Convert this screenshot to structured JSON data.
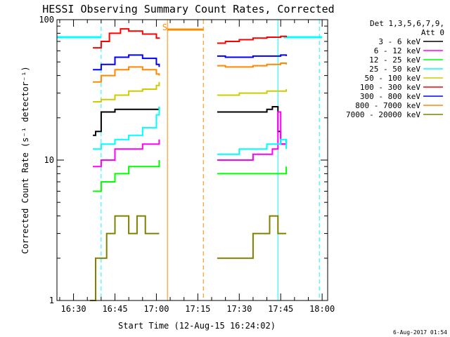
{
  "chart_data": {
    "type": "line",
    "title": "HESSI Observing Summary Count Rates, Corrected",
    "xlabel": "Start Time (12-Aug-15 16:24:02)",
    "ylabel": "Corrected Count Rate (s⁻¹ detector⁻¹)",
    "x_scale": "time",
    "y_scale": "log",
    "xlim": [
      "16:24",
      "18:02"
    ],
    "ylim": [
      1,
      100
    ],
    "x_ticks": [
      "16:30",
      "16:45",
      "17:00",
      "17:15",
      "17:30",
      "17:45",
      "18:00"
    ],
    "y_ticks": [
      "1",
      "10",
      "100"
    ],
    "grid": false,
    "legend_position": "right",
    "legend_header": [
      "Det 1,3,5,6,7,9,",
      "Att 0"
    ],
    "series": [
      {
        "name": "3 - 6 keV",
        "color": "#000000",
        "x": [
          "16:37",
          "16:38",
          "16:40",
          "16:45",
          "16:50",
          "16:55",
          "17:00",
          "17:01",
          "17:22",
          "17:25",
          "17:30",
          "17:35",
          "17:40",
          "17:42",
          "17:44",
          "17:45",
          "17:47"
        ],
        "y": [
          15,
          16,
          22,
          23,
          23,
          23,
          23,
          24,
          22,
          22,
          22,
          22,
          23,
          24,
          16,
          13,
          14
        ]
      },
      {
        "name": "6 - 12 keV",
        "color": "#ff00ff",
        "x": [
          "16:37",
          "16:40",
          "16:45",
          "16:50",
          "16:55",
          "17:00",
          "17:01",
          "17:22",
          "17:25",
          "17:30",
          "17:35",
          "17:40",
          "17:42",
          "17:44",
          "17:45",
          "17:47"
        ],
        "y": [
          9,
          10,
          12,
          12,
          13,
          13,
          14,
          10,
          10,
          10,
          11,
          11,
          12,
          22,
          13,
          14
        ]
      },
      {
        "name": "12 - 25 keV",
        "color": "#00ff00",
        "x": [
          "16:37",
          "16:40",
          "16:45",
          "16:50",
          "16:55",
          "17:00",
          "17:01",
          "17:22",
          "17:25",
          "17:30",
          "17:35",
          "17:40",
          "17:45",
          "17:47"
        ],
        "y": [
          6,
          7,
          8,
          9,
          9,
          9,
          10,
          8,
          8,
          8,
          8,
          8,
          8,
          9
        ]
      },
      {
        "name": "25 - 50 keV",
        "color": "#00ffff",
        "x": [
          "16:37",
          "16:40",
          "16:45",
          "16:50",
          "16:55",
          "17:00",
          "17:01",
          "17:22",
          "17:25",
          "17:30",
          "17:35",
          "17:40",
          "17:45",
          "17:47"
        ],
        "y": [
          12,
          13,
          14,
          15,
          17,
          21,
          24,
          11,
          11,
          12,
          12,
          13,
          14,
          12
        ]
      },
      {
        "name": "50 - 100 keV",
        "color": "#cccc00",
        "x": [
          "16:37",
          "16:40",
          "16:45",
          "16:50",
          "16:55",
          "17:00",
          "17:01",
          "17:22",
          "17:25",
          "17:30",
          "17:35",
          "17:40",
          "17:45",
          "17:47"
        ],
        "y": [
          26,
          27,
          29,
          31,
          32,
          34,
          36,
          29,
          29,
          30,
          30,
          31,
          31,
          32
        ]
      },
      {
        "name": "100 - 300 keV",
        "color": "#ff0000",
        "x": [
          "16:37",
          "16:40",
          "16:43",
          "16:47",
          "16:50",
          "16:55",
          "17:00",
          "17:01",
          "17:22",
          "17:25",
          "17:30",
          "17:35",
          "17:40",
          "17:45",
          "17:47"
        ],
        "y": [
          63,
          70,
          80,
          86,
          83,
          79,
          74,
          73,
          68,
          70,
          72,
          74,
          75,
          76,
          75
        ]
      },
      {
        "name": "300 - 800 keV",
        "color": "#0000ff",
        "x": [
          "16:37",
          "16:40",
          "16:45",
          "16:50",
          "16:55",
          "17:00",
          "17:01",
          "17:22",
          "17:25",
          "17:30",
          "17:35",
          "17:40",
          "17:45",
          "17:47"
        ],
        "y": [
          44,
          48,
          54,
          56,
          53,
          48,
          46,
          55,
          54,
          54,
          55,
          55,
          56,
          55
        ]
      },
      {
        "name": "800 - 7000 keV",
        "color": "#ff8800",
        "x": [
          "16:37",
          "16:40",
          "16:45",
          "16:50",
          "16:55",
          "17:00",
          "17:01",
          "17:22",
          "17:25",
          "17:30",
          "17:35",
          "17:40",
          "17:45",
          "17:47"
        ],
        "y": [
          36,
          40,
          44,
          46,
          44,
          41,
          40,
          47,
          46,
          46,
          47,
          48,
          49,
          48
        ]
      },
      {
        "name": "7000 - 20000 keV",
        "color": "#808000",
        "x": [
          "16:36",
          "16:38",
          "16:40",
          "16:42",
          "16:45",
          "16:48",
          "16:50",
          "16:53",
          "16:56",
          "17:00",
          "17:01",
          "17:22",
          "17:25",
          "17:28",
          "17:32",
          "17:35",
          "17:38",
          "17:41",
          "17:44",
          "17:47"
        ],
        "y": [
          1,
          2,
          2,
          3,
          4,
          4,
          3,
          4,
          3,
          3,
          3,
          2,
          2,
          2,
          2,
          3,
          3,
          4,
          3,
          3
        ]
      }
    ],
    "flags": [
      {
        "label": "S",
        "color": "#ff8800",
        "x": "17:01"
      }
    ],
    "spans": [
      {
        "color": "#00ffff",
        "x": [
          "16:24",
          "16:40"
        ],
        "y": 75
      },
      {
        "color": "#ff8800",
        "x": [
          "17:04",
          "17:17"
        ],
        "y": 85
      },
      {
        "color": "#00ffff",
        "x": [
          "17:46",
          "18:00"
        ],
        "y": 75
      }
    ],
    "vlines": [
      {
        "x": "16:24",
        "color": "#00ffff",
        "style": "solid"
      },
      {
        "x": "16:40",
        "color": "#00ffff",
        "style": "dashed"
      },
      {
        "x": "17:04",
        "color": "#ff8800",
        "style": "solid"
      },
      {
        "x": "17:17",
        "color": "#ff8800",
        "style": "dashed"
      },
      {
        "x": "17:44",
        "color": "#00ffff",
        "style": "solid"
      },
      {
        "x": "17:59",
        "color": "#00ffff",
        "style": "dashed"
      }
    ]
  },
  "timestamp": "6-Aug-2017 01:54"
}
